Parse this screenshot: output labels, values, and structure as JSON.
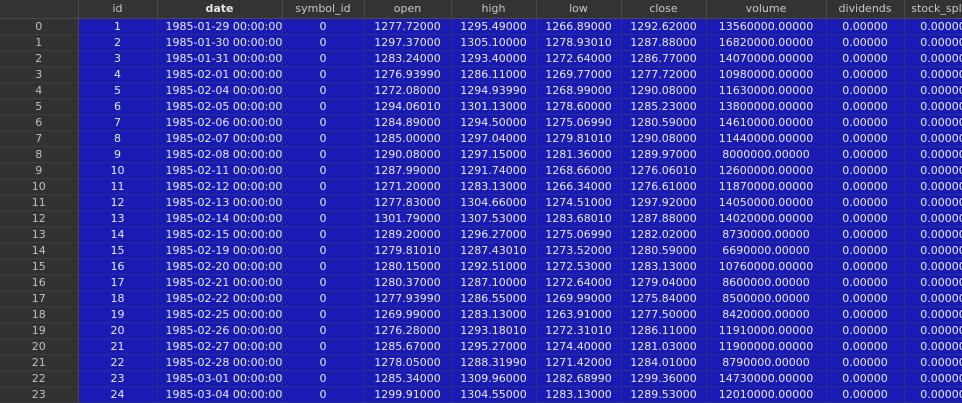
{
  "columns": [
    "",
    "id",
    "date",
    "symbol_id",
    "open",
    "high",
    "low",
    "close",
    "volume",
    "dividends",
    "stock_splits"
  ],
  "sorted_column": "date",
  "rows": [
    [
      "0",
      "1",
      "1985-01-29 00:00:00",
      "0",
      "1277.72000",
      "1295.49000",
      "1266.89000",
      "1292.62000",
      "13560000.00000",
      "0.00000",
      "0.00000"
    ],
    [
      "1",
      "2",
      "1985-01-30 00:00:00",
      "0",
      "1297.37000",
      "1305.10000",
      "1278.93010",
      "1287.88000",
      "16820000.00000",
      "0.00000",
      "0.00000"
    ],
    [
      "2",
      "3",
      "1985-01-31 00:00:00",
      "0",
      "1283.24000",
      "1293.40000",
      "1272.64000",
      "1286.77000",
      "14070000.00000",
      "0.00000",
      "0.00000"
    ],
    [
      "3",
      "4",
      "1985-02-01 00:00:00",
      "0",
      "1276.93990",
      "1286.11000",
      "1269.77000",
      "1277.72000",
      "10980000.00000",
      "0.00000",
      "0.00000"
    ],
    [
      "4",
      "5",
      "1985-02-04 00:00:00",
      "0",
      "1272.08000",
      "1294.93990",
      "1268.99000",
      "1290.08000",
      "11630000.00000",
      "0.00000",
      "0.00000"
    ],
    [
      "5",
      "6",
      "1985-02-05 00:00:00",
      "0",
      "1294.06010",
      "1301.13000",
      "1278.60000",
      "1285.23000",
      "13800000.00000",
      "0.00000",
      "0.00000"
    ],
    [
      "6",
      "7",
      "1985-02-06 00:00:00",
      "0",
      "1284.89000",
      "1294.50000",
      "1275.06990",
      "1280.59000",
      "14610000.00000",
      "0.00000",
      "0.00000"
    ],
    [
      "7",
      "8",
      "1985-02-07 00:00:00",
      "0",
      "1285.00000",
      "1297.04000",
      "1279.81010",
      "1290.08000",
      "11440000.00000",
      "0.00000",
      "0.00000"
    ],
    [
      "8",
      "9",
      "1985-02-08 00:00:00",
      "0",
      "1290.08000",
      "1297.15000",
      "1281.36000",
      "1289.97000",
      "8000000.00000",
      "0.00000",
      "0.00000"
    ],
    [
      "9",
      "10",
      "1985-02-11 00:00:00",
      "0",
      "1287.99000",
      "1291.74000",
      "1268.66000",
      "1276.06010",
      "12600000.00000",
      "0.00000",
      "0.00000"
    ],
    [
      "10",
      "11",
      "1985-02-12 00:00:00",
      "0",
      "1271.20000",
      "1283.13000",
      "1266.34000",
      "1276.61000",
      "11870000.00000",
      "0.00000",
      "0.00000"
    ],
    [
      "11",
      "12",
      "1985-02-13 00:00:00",
      "0",
      "1277.83000",
      "1304.66000",
      "1274.51000",
      "1297.92000",
      "14050000.00000",
      "0.00000",
      "0.00000"
    ],
    [
      "12",
      "13",
      "1985-02-14 00:00:00",
      "0",
      "1301.79000",
      "1307.53000",
      "1283.68010",
      "1287.88000",
      "14020000.00000",
      "0.00000",
      "0.00000"
    ],
    [
      "13",
      "14",
      "1985-02-15 00:00:00",
      "0",
      "1289.20000",
      "1296.27000",
      "1275.06990",
      "1282.02000",
      "8730000.00000",
      "0.00000",
      "0.00000"
    ],
    [
      "14",
      "15",
      "1985-02-19 00:00:00",
      "0",
      "1279.81010",
      "1287.43010",
      "1273.52000",
      "1280.59000",
      "6690000.00000",
      "0.00000",
      "0.00000"
    ],
    [
      "15",
      "16",
      "1985-02-20 00:00:00",
      "0",
      "1280.15000",
      "1292.51000",
      "1272.53000",
      "1283.13000",
      "10760000.00000",
      "0.00000",
      "0.00000"
    ],
    [
      "16",
      "17",
      "1985-02-21 00:00:00",
      "0",
      "1280.37000",
      "1287.10000",
      "1272.64000",
      "1279.04000",
      "8600000.00000",
      "0.00000",
      "0.00000"
    ],
    [
      "17",
      "18",
      "1985-02-22 00:00:00",
      "0",
      "1277.93990",
      "1286.55000",
      "1269.99000",
      "1275.84000",
      "8500000.00000",
      "0.00000",
      "0.00000"
    ],
    [
      "18",
      "19",
      "1985-02-25 00:00:00",
      "0",
      "1269.99000",
      "1283.13000",
      "1263.91000",
      "1277.50000",
      "8420000.00000",
      "0.00000",
      "0.00000"
    ],
    [
      "19",
      "20",
      "1985-02-26 00:00:00",
      "0",
      "1276.28000",
      "1293.18010",
      "1272.31010",
      "1286.11000",
      "11910000.00000",
      "0.00000",
      "0.00000"
    ],
    [
      "20",
      "21",
      "1985-02-27 00:00:00",
      "0",
      "1285.67000",
      "1295.27000",
      "1274.40000",
      "1281.03000",
      "11900000.00000",
      "0.00000",
      "0.00000"
    ],
    [
      "21",
      "22",
      "1985-02-28 00:00:00",
      "0",
      "1278.05000",
      "1288.31990",
      "1271.42000",
      "1284.01000",
      "8790000.00000",
      "0.00000",
      "0.00000"
    ],
    [
      "22",
      "23",
      "1985-03-01 00:00:00",
      "0",
      "1285.34000",
      "1309.96000",
      "1282.68990",
      "1299.36000",
      "14730000.00000",
      "0.00000",
      "0.00000"
    ],
    [
      "23",
      "24",
      "1985-03-04 00:00:00",
      "0",
      "1299.91000",
      "1304.55000",
      "1283.13000",
      "1289.53000",
      "12010000.00000",
      "0.00000",
      "0.00000"
    ]
  ]
}
